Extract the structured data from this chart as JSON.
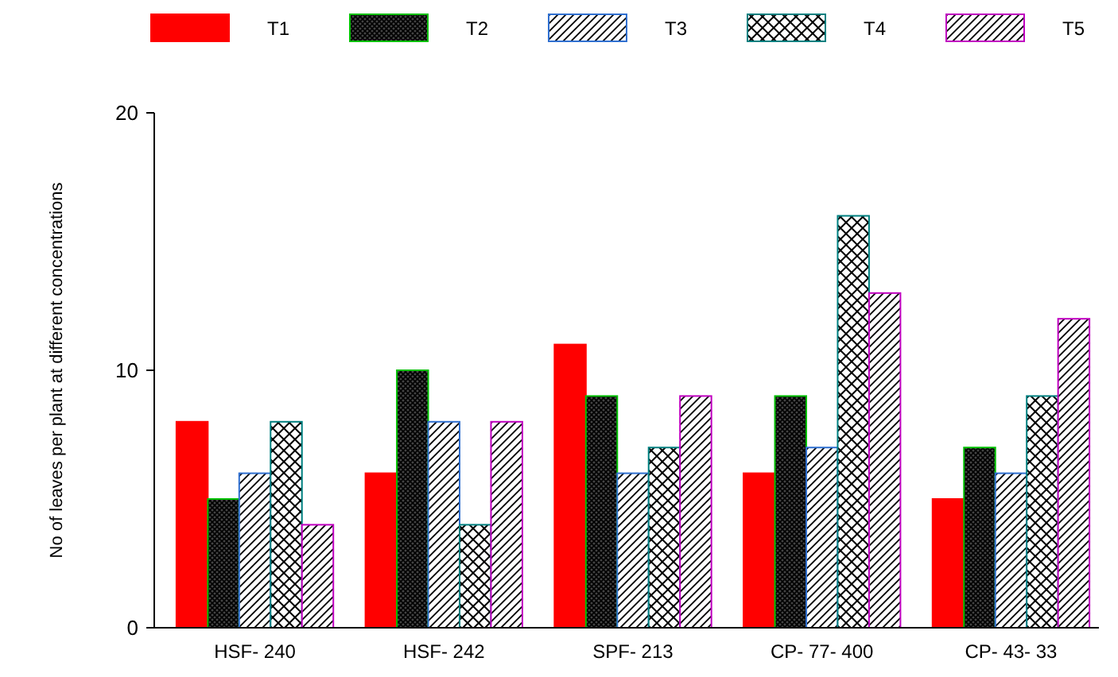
{
  "chart_data": {
    "type": "bar",
    "ylabel": "No of leaves per plant at different concentrations",
    "categories": [
      "HSF- 240",
      "HSF- 242",
      "SPF- 213",
      "CP- 77- 400",
      "CP- 43- 33"
    ],
    "series": [
      {
        "name": "T1",
        "color": "#ff0000",
        "values": [
          8,
          6,
          11,
          6,
          5
        ]
      },
      {
        "name": "T2",
        "color": "#00c000",
        "values": [
          5,
          10,
          9,
          9,
          7
        ]
      },
      {
        "name": "T3",
        "color": "#3070d0",
        "values": [
          6,
          8,
          6,
          7,
          6
        ]
      },
      {
        "name": "T4",
        "color": "#008080",
        "values": [
          8,
          4,
          7,
          16,
          9
        ]
      },
      {
        "name": "T5",
        "color": "#c000c0",
        "values": [
          4,
          8,
          9,
          13,
          12
        ]
      }
    ],
    "ylim": [
      0,
      20
    ],
    "yticks": [
      0,
      10,
      20
    ],
    "grid": false,
    "legend": "top"
  }
}
